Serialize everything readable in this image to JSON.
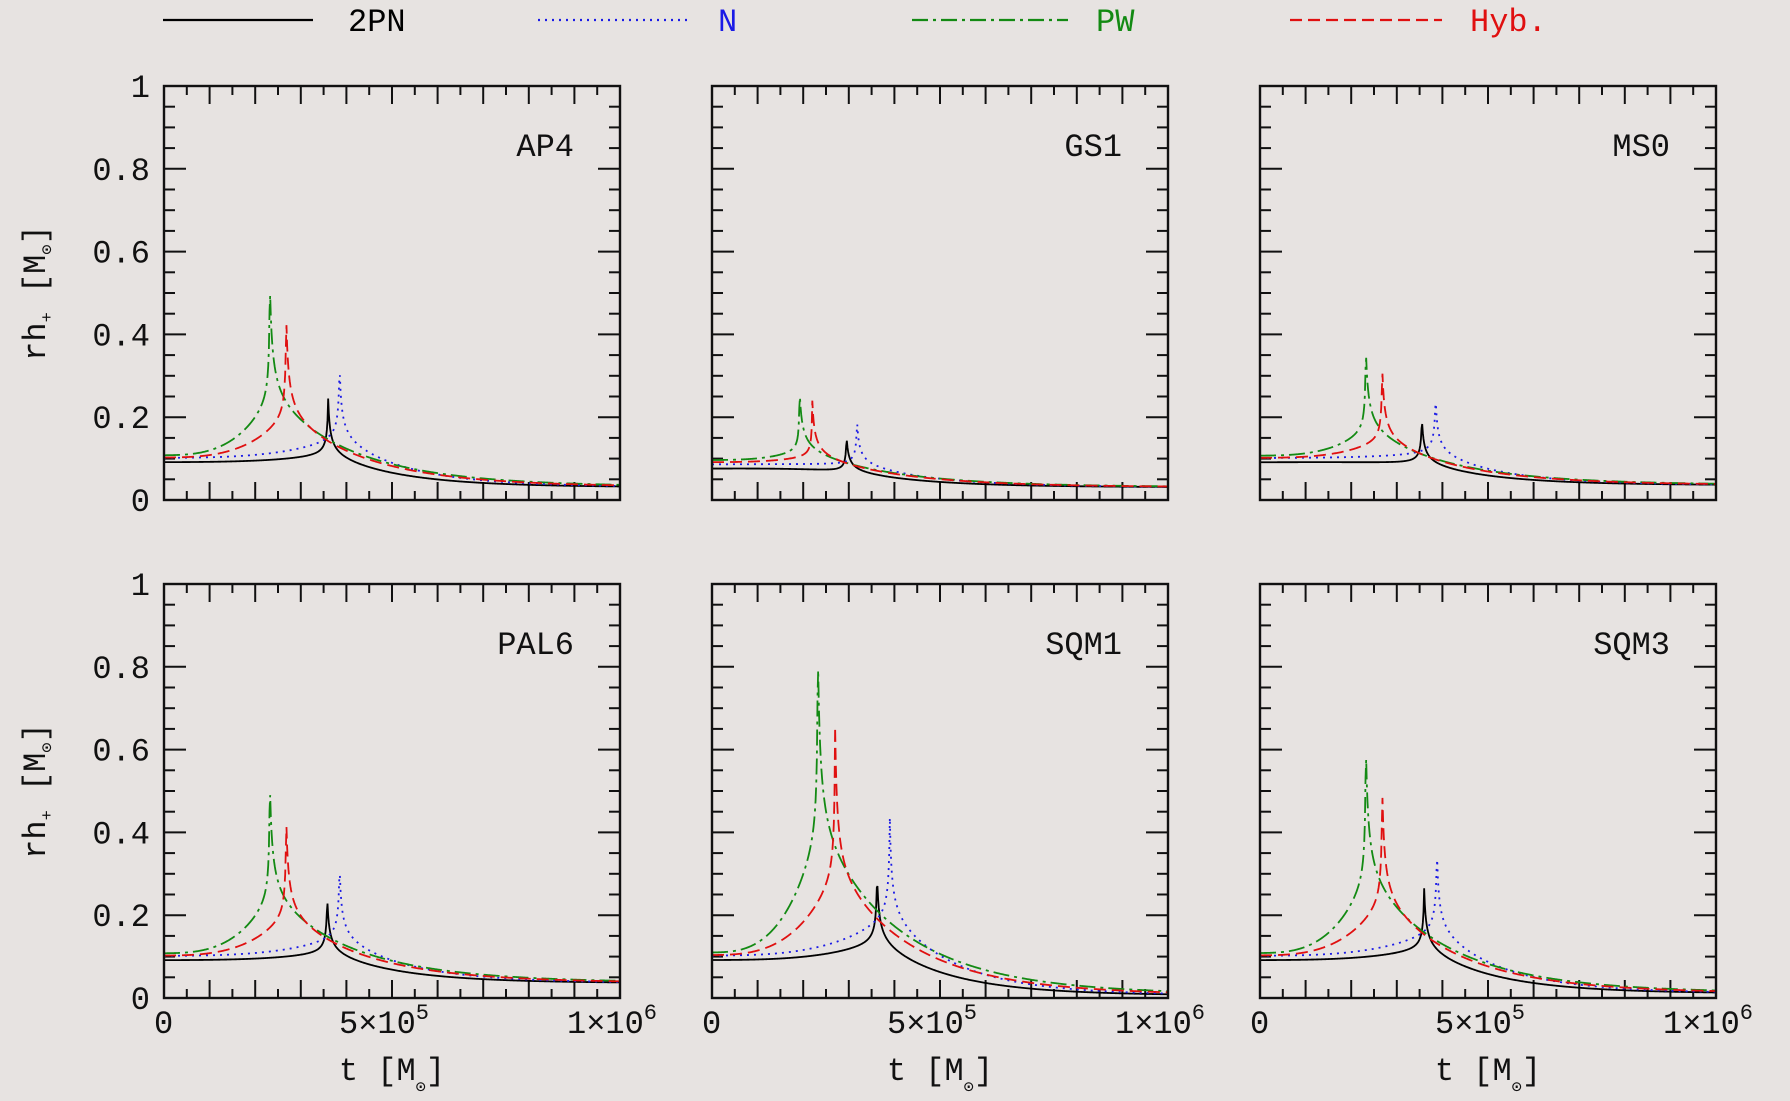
{
  "chart_data": {
    "type": "line",
    "legend": {
      "placement": "top",
      "entries": [
        {
          "label": "2PN",
          "color": "#000000",
          "dash": "solid"
        },
        {
          "label": "N",
          "color": "#1a1ae6",
          "dash": "dotted"
        },
        {
          "label": "PW",
          "color": "#138a13",
          "dash": "dashdot"
        },
        {
          "label": "Hyb.",
          "color": "#e01010",
          "dash": "dashed"
        }
      ]
    },
    "xlabel": "t  [M",
    "xlabel_sub": "⊙",
    "xlabel_end": "]",
    "ylabel": "rh",
    "ylabel_sub": "+",
    "ylabel_unit": " [M",
    "ylabel_unit_sub": "⊙",
    "ylabel_end": "]",
    "xlim": [
      0,
      1000000
    ],
    "ylim": [
      0,
      1
    ],
    "x_tick_labels": [
      {
        "value": 0,
        "mantissa": "0",
        "exp": ""
      },
      {
        "value": 500000,
        "mantissa": "5×10",
        "exp": "5"
      },
      {
        "value": 1000000,
        "mantissa": "1×10",
        "exp": "6"
      }
    ],
    "y_tick_labels": [
      "0",
      "0.2",
      "0.4",
      "0.6",
      "0.8",
      "1"
    ],
    "y_tick_values": [
      0,
      0.2,
      0.4,
      0.6,
      0.8,
      1
    ],
    "panels": [
      {
        "name": "AP4",
        "series": [
          {
            "name": "2PN",
            "t_peak": 360000,
            "peak": 0.245,
            "start": 0.09,
            "end": 0.03
          },
          {
            "name": "N",
            "t_peak": 385000,
            "peak": 0.33,
            "start": 0.1,
            "end": 0.03
          },
          {
            "name": "PW",
            "t_peak": 232000,
            "peak": 0.54,
            "start": 0.105,
            "end": 0.03
          },
          {
            "name": "Hyb.",
            "t_peak": 268000,
            "peak": 0.45,
            "start": 0.1,
            "end": 0.03
          }
        ]
      },
      {
        "name": "GS1",
        "series": [
          {
            "name": "2PN",
            "t_peak": 295000,
            "peak": 0.155,
            "start": 0.075,
            "end": 0.03
          },
          {
            "name": "N",
            "t_peak": 318000,
            "peak": 0.195,
            "start": 0.085,
            "end": 0.03
          },
          {
            "name": "PW",
            "t_peak": 192000,
            "peak": 0.27,
            "start": 0.095,
            "end": 0.03
          },
          {
            "name": "Hyb.",
            "t_peak": 220000,
            "peak": 0.24,
            "start": 0.09,
            "end": 0.03
          }
        ]
      },
      {
        "name": "MS0",
        "series": [
          {
            "name": "2PN",
            "t_peak": 355000,
            "peak": 0.2,
            "start": 0.09,
            "end": 0.035
          },
          {
            "name": "N",
            "t_peak": 385000,
            "peak": 0.255,
            "start": 0.1,
            "end": 0.035
          },
          {
            "name": "PW",
            "t_peak": 232000,
            "peak": 0.375,
            "start": 0.105,
            "end": 0.035
          },
          {
            "name": "Hyb.",
            "t_peak": 268000,
            "peak": 0.325,
            "start": 0.1,
            "end": 0.035
          }
        ]
      },
      {
        "name": "PAL6",
        "series": [
          {
            "name": "2PN",
            "t_peak": 358000,
            "peak": 0.245,
            "start": 0.09,
            "end": 0.035
          },
          {
            "name": "N",
            "t_peak": 385000,
            "peak": 0.325,
            "start": 0.1,
            "end": 0.035
          },
          {
            "name": "PW",
            "t_peak": 232000,
            "peak": 0.535,
            "start": 0.105,
            "end": 0.035
          },
          {
            "name": "Hyb.",
            "t_peak": 268000,
            "peak": 0.44,
            "start": 0.1,
            "end": 0.035
          }
        ]
      },
      {
        "name": "SQM1",
        "series": [
          {
            "name": "2PN",
            "t_peak": 362000,
            "peak": 0.3,
            "start": 0.09,
            "end": 0.005
          },
          {
            "name": "N",
            "t_peak": 390000,
            "peak": 0.435,
            "start": 0.1,
            "end": 0.005
          },
          {
            "name": "PW",
            "t_peak": 232000,
            "peak": 0.865,
            "start": 0.105,
            "end": 0.005
          },
          {
            "name": "Hyb.",
            "t_peak": 270000,
            "peak": 0.655,
            "start": 0.1,
            "end": 0.005
          }
        ]
      },
      {
        "name": "SQM3",
        "series": [
          {
            "name": "2PN",
            "t_peak": 360000,
            "peak": 0.265,
            "start": 0.09,
            "end": 0.01
          },
          {
            "name": "N",
            "t_peak": 388000,
            "peak": 0.36,
            "start": 0.1,
            "end": 0.01
          },
          {
            "name": "PW",
            "t_peak": 232000,
            "peak": 0.63,
            "start": 0.105,
            "end": 0.01
          },
          {
            "name": "Hyb.",
            "t_peak": 268000,
            "peak": 0.515,
            "start": 0.1,
            "end": 0.01
          }
        ]
      }
    ]
  }
}
